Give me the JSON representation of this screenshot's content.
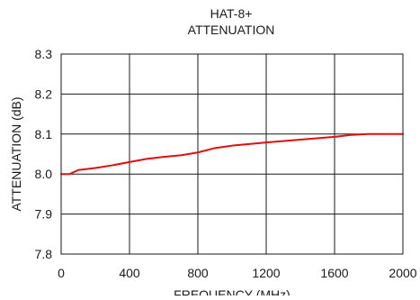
{
  "chart_data": {
    "type": "line",
    "title": "HAT-8+",
    "subtitle": "ATTENUATION",
    "xlabel": "FREQUENCY (MHz)",
    "ylabel": "ATTENUATION (dB)",
    "xlim": [
      0,
      2000
    ],
    "ylim": [
      7.8,
      8.3
    ],
    "xticks": [
      0,
      400,
      800,
      1200,
      1600,
      2000
    ],
    "yticks": [
      7.8,
      7.9,
      8.0,
      8.1,
      8.2,
      8.3
    ],
    "xtick_labels": [
      "0",
      "400",
      "800",
      "1200",
      "1600",
      "2000"
    ],
    "ytick_labels": [
      "7.8",
      "7.9",
      "8.0",
      "8.1",
      "8.2",
      "8.3"
    ],
    "grid": true,
    "legend": "none",
    "series": [
      {
        "color": "#e01010",
        "x": [
          0,
          50,
          100,
          200,
          300,
          400,
          500,
          600,
          700,
          800,
          900,
          1000,
          1200,
          1400,
          1600,
          1700,
          1800,
          1900,
          2000
        ],
        "y": [
          8.0,
          8.0,
          8.01,
          8.015,
          8.022,
          8.03,
          8.038,
          8.043,
          8.047,
          8.054,
          8.065,
          8.071,
          8.079,
          8.086,
          8.093,
          8.098,
          8.1,
          8.1,
          8.1
        ]
      }
    ]
  }
}
